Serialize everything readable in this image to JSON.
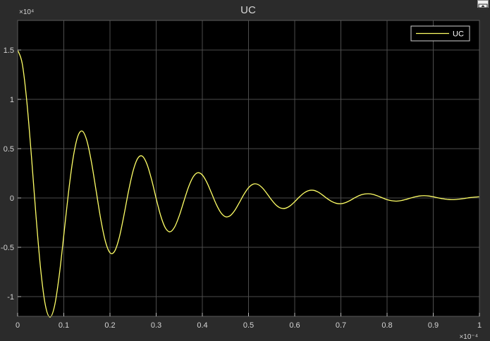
{
  "chart_data": {
    "type": "line",
    "title": "UC",
    "xlabel": "",
    "ylabel": "",
    "xlim": [
      0,
      1
    ],
    "ylim": [
      -1.2,
      1.8
    ],
    "x_exponent_label": "×10⁻⁴",
    "y_exponent_label": "×10⁴",
    "x_ticks": [
      0,
      0.1,
      0.2,
      0.3,
      0.4,
      0.5,
      0.6,
      0.7,
      0.8,
      0.9,
      1
    ],
    "x_tick_labels": [
      "0",
      "0.1",
      "0.2",
      "0.3",
      "0.4",
      "0.5",
      "0.6",
      "0.7",
      "0.8",
      "0.9",
      "1"
    ],
    "y_ticks": [
      -1,
      -0.5,
      0,
      0.5,
      1,
      1.5
    ],
    "y_tick_labels": [
      "-1",
      "-0.5",
      "0",
      "0.5",
      "1",
      "1.5"
    ],
    "grid": true,
    "legend_position": "top-right",
    "colors": {
      "background": "#000000",
      "figure": "#2b2b2b",
      "grid": "#4d4d4d",
      "series": "#ffff66",
      "text": "#d4d4d4"
    },
    "series": [
      {
        "name": "UC",
        "x": [
          0,
          0.01,
          0.02,
          0.03,
          0.04,
          0.05,
          0.06,
          0.07,
          0.08,
          0.09,
          0.1,
          0.11,
          0.12,
          0.13,
          0.14,
          0.15,
          0.16,
          0.17,
          0.18,
          0.19,
          0.2,
          0.21,
          0.22,
          0.23,
          0.24,
          0.25,
          0.26,
          0.27,
          0.28,
          0.29,
          0.3,
          0.31,
          0.32,
          0.33,
          0.34,
          0.35,
          0.36,
          0.37,
          0.38,
          0.39,
          0.4,
          0.41,
          0.42,
          0.43,
          0.44,
          0.45,
          0.46,
          0.47,
          0.48,
          0.49,
          0.5,
          0.51,
          0.52,
          0.53,
          0.54,
          0.55,
          0.56,
          0.57,
          0.58,
          0.59,
          0.6,
          0.61,
          0.62,
          0.63,
          0.64,
          0.65,
          0.66,
          0.67,
          0.68,
          0.69,
          0.7,
          0.71,
          0.72,
          0.73,
          0.74,
          0.75,
          0.76,
          0.77,
          0.78,
          0.79,
          0.8,
          0.81,
          0.82,
          0.83,
          0.84,
          0.85,
          0.86,
          0.87,
          0.88,
          0.89,
          0.9,
          0.91,
          0.92,
          0.93,
          0.94,
          0.95,
          0.96,
          0.97,
          0.98,
          0.99,
          1
        ],
        "y": [
          1.5,
          1.362,
          0.974,
          0.417,
          -0.194,
          -0.728,
          -1.085,
          -1.208,
          -1.094,
          -0.789,
          -0.376,
          0.049,
          0.401,
          0.621,
          0.678,
          0.58,
          0.36,
          0.073,
          -0.215,
          -0.439,
          -0.555,
          -0.54,
          -0.403,
          -0.181,
          0.065,
          0.274,
          0.401,
          0.424,
          0.344,
          0.188,
          -0.005,
          -0.183,
          -0.304,
          -0.343,
          -0.294,
          -0.18,
          -0.033,
          0.11,
          0.213,
          0.256,
          0.233,
          0.156,
          0.048,
          -0.063,
          -0.148,
          -0.19,
          -0.181,
          -0.128,
          -0.048,
          0.036,
          0.104,
          0.14,
          0.138,
          0.102,
          0.044,
          -0.02,
          -0.073,
          -0.103,
          -0.104,
          -0.08,
          -0.038,
          0.01,
          0.05,
          0.074,
          0.078,
          0.062,
          0.031,
          -0.005,
          -0.035,
          -0.054,
          -0.058,
          -0.047,
          -0.025,
          0.002,
          0.025,
          0.039,
          0.043,
          0.036,
          0.02,
          0.001,
          -0.017,
          -0.028,
          -0.032,
          -0.027,
          -0.016,
          -0.002,
          0.011,
          0.02,
          0.023,
          0.02,
          0.012,
          0.002,
          -0.007,
          -0.014,
          -0.017,
          -0.015,
          -0.01,
          -0.003,
          0.004,
          0.009,
          0.012
        ]
      }
    ]
  }
}
